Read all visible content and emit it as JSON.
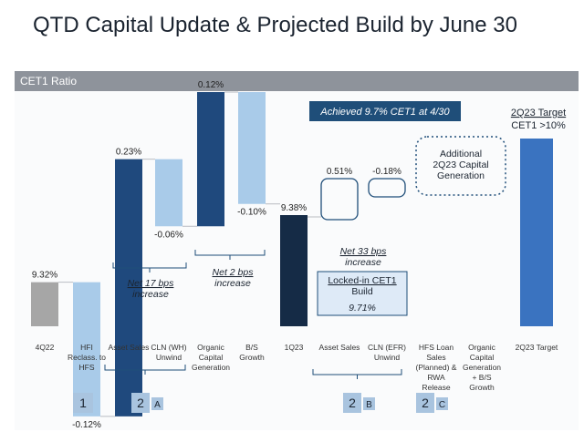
{
  "page": {
    "title": "QTD Capital Update & Projected Build by June 30"
  },
  "panel": {
    "header": "CET1 Ratio"
  },
  "banner": {
    "text": "Achieved 9.7% CET1 at 4/30"
  },
  "target": {
    "line1": "2Q23 Target",
    "line2": "CET1 >10%"
  },
  "additional": {
    "lines": [
      "Additional",
      "2Q23 Capital",
      "Generation"
    ]
  },
  "locked": {
    "lines": [
      "Locked-in CET1",
      "Build"
    ],
    "value": "9.71%"
  },
  "net_notes": [
    {
      "lines": [
        "Net 17 bps",
        "increase"
      ]
    },
    {
      "lines": [
        "Net 2 bps",
        "increase"
      ]
    },
    {
      "lines": [
        "Net 33 bps",
        "increase"
      ]
    }
  ],
  "colors": {
    "base": "#a6a6a6",
    "q1": "#152b46",
    "increase": "#1f497d",
    "decrease": "#a9cbe9",
    "target": "#3a73c0",
    "header": "#8e939b",
    "accent": "#1f4e79"
  },
  "chart_data": {
    "type": "bar",
    "subtype": "waterfall",
    "unit": "%",
    "categories": [
      [
        "4Q22"
      ],
      [
        "HFI",
        "Reclass. to",
        "HFS"
      ],
      [
        "Asset Sales"
      ],
      [
        "CLN (WH)",
        "Unwind"
      ],
      [
        "Organic",
        "Capital",
        "Generation"
      ],
      [
        "B/S",
        "Growth"
      ],
      [
        "1Q23"
      ],
      [
        "Asset Sales"
      ],
      [
        "CLN (EFR)",
        "Unwind"
      ],
      [
        "HFS Loan",
        "Sales",
        "(Planned) &",
        "RWA",
        "Release"
      ],
      [
        "Organic",
        "Capital",
        "Generation",
        "+ B/S",
        "Growth"
      ],
      [
        "2Q23 Target"
      ]
    ],
    "bars": [
      {
        "kind": "total",
        "value": 9.32,
        "label": "9.32%"
      },
      {
        "kind": "decrease",
        "value": -0.12,
        "label": "-0.12%"
      },
      {
        "kind": "increase",
        "value": 0.23,
        "label": "0.23%"
      },
      {
        "kind": "decrease",
        "value": -0.06,
        "label": "-0.06%"
      },
      {
        "kind": "increase",
        "value": 0.12,
        "label": "0.12%"
      },
      {
        "kind": "decrease",
        "value": -0.1,
        "label": "-0.10%"
      },
      {
        "kind": "total",
        "value": 9.38,
        "label": "9.38%"
      },
      {
        "kind": "projected",
        "value": 0.51,
        "label": "0.51%"
      },
      {
        "kind": "projected",
        "value": -0.18,
        "label": "-0.18%"
      },
      {
        "kind": "none",
        "value": null,
        "label": ""
      },
      {
        "kind": "none",
        "value": null,
        "label": ""
      },
      {
        "kind": "target",
        "value": 10.0,
        "label": ""
      }
    ],
    "groups": [
      {
        "label": "1",
        "letter": "",
        "from": 1,
        "to": 1
      },
      {
        "label": "2",
        "letter": "A",
        "from": 2,
        "to": 5
      },
      {
        "label": "2",
        "letter": "B",
        "from": 7,
        "to": 8
      },
      {
        "label": "2",
        "letter": "C",
        "from": 9,
        "to": 9
      }
    ]
  }
}
